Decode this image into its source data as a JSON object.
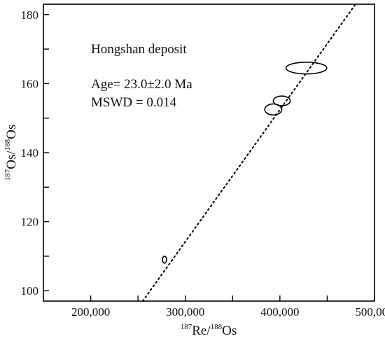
{
  "chart_data": {
    "type": "scatter",
    "title": "",
    "annotations": {
      "deposit": "Hongshan deposit",
      "age": "Age= 23.0±2.0 Ma",
      "mswd": "MSWD = 0.014"
    },
    "xlabel": {
      "sup1": "187",
      "base1": "Re/",
      "sup2": "188",
      "base2": "Os"
    },
    "ylabel": {
      "sup1": "187",
      "base1": "Os/",
      "sup2": "188",
      "base2": "Os"
    },
    "xlim": [
      150000,
      500000
    ],
    "ylim": [
      97,
      183
    ],
    "xticks": [
      200000,
      250000,
      300000,
      350000,
      400000,
      450000,
      500000
    ],
    "xtick_labels": [
      "200,000",
      "",
      "300,000",
      "",
      "400,000",
      "",
      "500,000"
    ],
    "yticks": [
      100,
      110,
      120,
      130,
      140,
      150,
      160,
      170,
      180
    ],
    "ytick_labels": [
      "100",
      "",
      "120",
      "",
      "140",
      "",
      "160",
      "",
      "180"
    ],
    "isochron_line": {
      "style": "dotted",
      "x": [
        255000,
        480000
      ],
      "y": [
        97,
        183
      ]
    },
    "points": [
      {
        "x": 278000,
        "y": 109,
        "x_err": 2200,
        "y_err": 1.0
      },
      {
        "x": 393000,
        "y": 152.5,
        "x_err": 9000,
        "y_err": 1.6
      },
      {
        "x": 402000,
        "y": 155,
        "x_err": 9000,
        "y_err": 1.4
      },
      {
        "x": 428000,
        "y": 164.5,
        "x_err": 21500,
        "y_err": 1.7
      }
    ],
    "grid": false,
    "legend": "none"
  }
}
